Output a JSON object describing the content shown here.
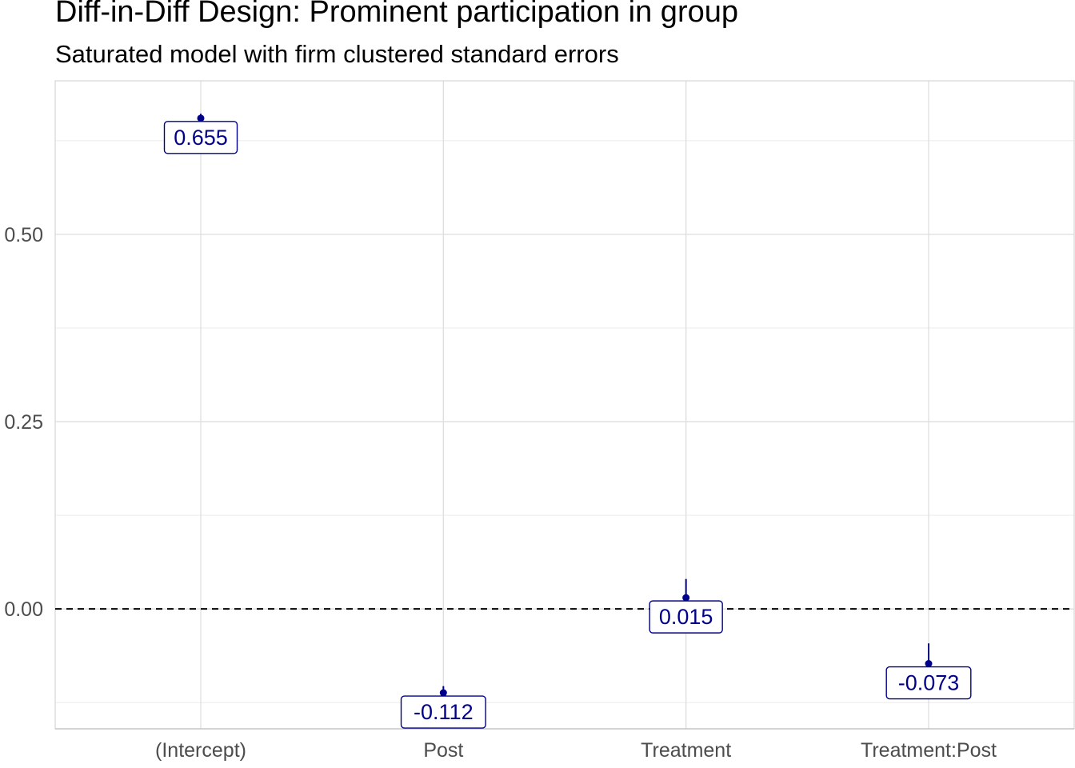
{
  "chart_data": {
    "type": "scatter",
    "title": "Diff-in-Diff Design: Prominent participation in group",
    "subtitle": "Saturated model with firm clustered standard errors",
    "xlabel": "",
    "ylabel": "",
    "categories": [
      "(Intercept)",
      "Post",
      "Treatment",
      "Treatment:Post"
    ],
    "estimates": [
      0.655,
      -0.112,
      0.015,
      -0.073
    ],
    "ci_low": [
      0.648,
      -0.122,
      -0.003,
      -0.09
    ],
    "ci_high": [
      0.661,
      -0.103,
      0.04,
      -0.046
    ],
    "labels": [
      "0.655",
      "-0.112",
      "0.015",
      "-0.073"
    ],
    "ylim": [
      -0.16,
      0.705
    ],
    "yticks": [
      0.0,
      0.25,
      0.5
    ],
    "ytick_labels": [
      "0.00",
      "0.25",
      "0.50"
    ],
    "reference_line": 0,
    "grid": true,
    "colors": {
      "points": "#00008b",
      "label_border": "#00008b",
      "grid": "#ebebeb",
      "reference": "#000000"
    }
  }
}
